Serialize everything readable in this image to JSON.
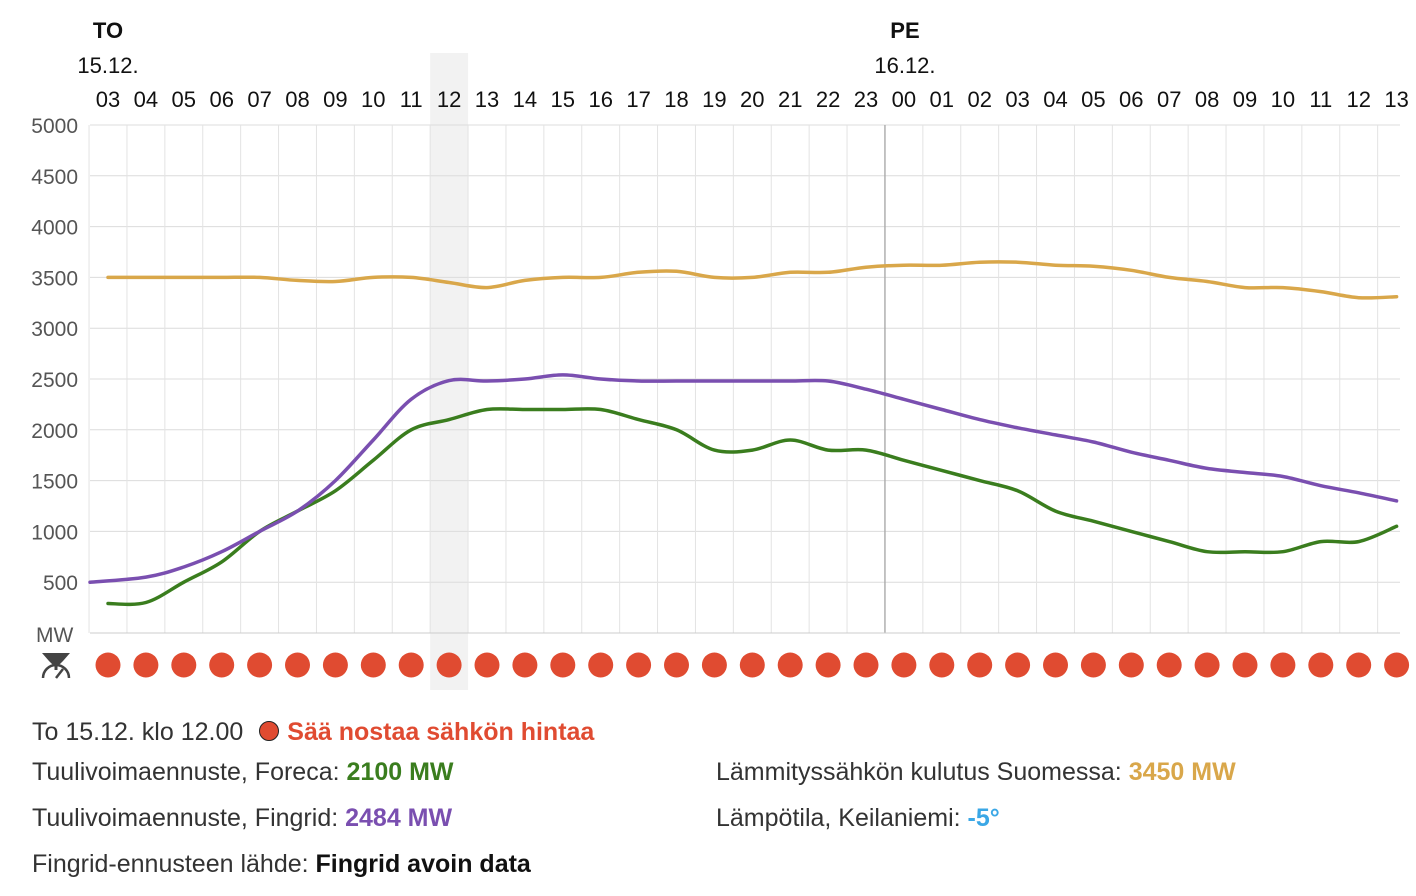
{
  "chart_data": {
    "type": "line",
    "y_unit_label": "MW",
    "ylim": [
      0,
      5000
    ],
    "y_ticks": [
      "5000",
      "4500",
      "4000",
      "3500",
      "3000",
      "2500",
      "2000",
      "1500",
      "1000",
      "500"
    ],
    "days": [
      {
        "weekday": "TO",
        "date": "15.12."
      },
      {
        "weekday": "PE",
        "date": "16.12."
      }
    ],
    "hour_labels": [
      "03",
      "04",
      "05",
      "06",
      "07",
      "08",
      "09",
      "10",
      "11",
      "12",
      "13",
      "14",
      "15",
      "16",
      "17",
      "18",
      "19",
      "20",
      "21",
      "22",
      "23",
      "00",
      "01",
      "02",
      "03",
      "04",
      "05",
      "06",
      "07",
      "08",
      "09",
      "10",
      "11",
      "12",
      "13"
    ],
    "highlighted_hour_index": 9,
    "weather_effect_dots": 35,
    "series": [
      {
        "name": "Tuulivoimaennuste, Foreca",
        "color": "#3a7d1e",
        "values": [
          290,
          300,
          500,
          700,
          1000,
          1200,
          1400,
          1700,
          2000,
          2100,
          2200,
          2200,
          2200,
          2200,
          2100,
          2000,
          1800,
          1800,
          1900,
          1800,
          1800,
          1700,
          1600,
          1500,
          1400,
          1200,
          1100,
          1000,
          900,
          800,
          800,
          800,
          900,
          900,
          1050
        ]
      },
      {
        "name": "Tuulivoimaennuste, Fingrid",
        "color": "#7a4fb0",
        "values": [
          500,
          550,
          650,
          800,
          1000,
          1200,
          1500,
          1900,
          2300,
          2484,
          2480,
          2500,
          2540,
          2500,
          2480,
          2480,
          2480,
          2480,
          2480,
          2480,
          2400,
          2300,
          2200,
          2100,
          2020,
          1950,
          1880,
          1780,
          1700,
          1620,
          1580,
          1540,
          1450,
          1380,
          1300
        ]
      },
      {
        "name": "Lämmityssähkön kulutus Suomessa",
        "color": "#d9a74a",
        "values": [
          3500,
          3500,
          3500,
          3500,
          3500,
          3470,
          3460,
          3500,
          3500,
          3450,
          3400,
          3470,
          3500,
          3500,
          3550,
          3560,
          3500,
          3500,
          3550,
          3550,
          3600,
          3620,
          3620,
          3650,
          3650,
          3620,
          3610,
          3570,
          3500,
          3460,
          3400,
          3400,
          3360,
          3300,
          3310
        ]
      }
    ]
  },
  "info": {
    "timestamp": "To 15.12. klo 12.00",
    "status_text": "Sää nostaa sähkön hintaa",
    "status_color": "#e04b31",
    "foreca_label": "Tuulivoimaennuste, Foreca: ",
    "foreca_value": "2100 MW",
    "foreca_color": "#3a7d1e",
    "fingrid_label": "Tuulivoimaennuste, Fingrid: ",
    "fingrid_value": "2484 MW",
    "fingrid_color": "#7a4fb0",
    "heating_label": "Lämmityssähkön kulutus Suomessa: ",
    "heating_value": "3450 MW",
    "heating_color": "#d9a74a",
    "temp_label": "Lämpötila, Keilaniemi: ",
    "temp_value": "-5°",
    "temp_color": "#3aa7e6",
    "source_label": "Fingrid-ennusteen lähde: ",
    "source_link": "Fingrid avoin data"
  }
}
